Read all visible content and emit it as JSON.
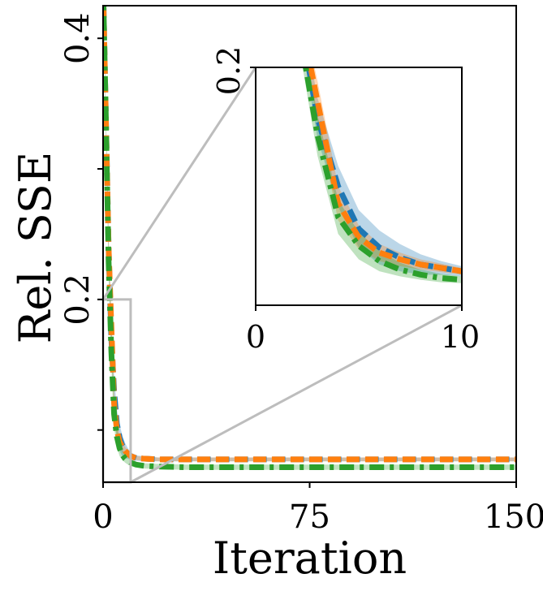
{
  "chart_data": {
    "type": "line",
    "xlabel": "Iteration",
    "ylabel": "Rel. SSE",
    "xlim": [
      0,
      150
    ],
    "ylim": [
      0.06,
      0.425
    ],
    "xticks": [
      "0",
      "75",
      "150"
    ],
    "yticks": [
      "0.2",
      "0.4"
    ],
    "grid": false,
    "legend": "none",
    "series": [
      {
        "color": "#1f77b4",
        "linestyle": "dashed",
        "band_opacity": 0.3,
        "x": [
          0,
          1,
          2,
          3,
          4,
          5,
          6,
          7,
          8,
          9,
          10,
          12,
          15,
          20,
          30,
          50,
          75,
          100,
          125,
          150
        ],
        "y": [
          0.44,
          0.34,
          0.24,
          0.17,
          0.13,
          0.105,
          0.094,
          0.088,
          0.084,
          0.082,
          0.08,
          0.0785,
          0.078,
          0.0775,
          0.0775,
          0.0775,
          0.0775,
          0.0775,
          0.0775,
          0.0775
        ],
        "band": [
          0.006,
          0.006,
          0.008,
          0.012,
          0.012,
          0.011,
          0.01,
          0.008,
          0.006,
          0.004,
          0.003,
          0.002,
          0.002,
          0.0015,
          0.0015,
          0.0015,
          0.0015,
          0.0015,
          0.0015,
          0.0015
        ]
      },
      {
        "color": "#ff7f0e",
        "linestyle": "dashed",
        "band_opacity": 0.3,
        "x": [
          0,
          1,
          2,
          3,
          4,
          5,
          6,
          7,
          8,
          9,
          10,
          12,
          15,
          20,
          30,
          50,
          75,
          100,
          125,
          150
        ],
        "y": [
          0.44,
          0.34,
          0.24,
          0.18,
          0.12,
          0.1,
          0.091,
          0.087,
          0.084,
          0.082,
          0.08,
          0.0785,
          0.078,
          0.0775,
          0.0775,
          0.0775,
          0.0775,
          0.0775,
          0.0775,
          0.0775
        ],
        "band": [
          0.006,
          0.006,
          0.008,
          0.012,
          0.01,
          0.007,
          0.005,
          0.004,
          0.003,
          0.0025,
          0.002,
          0.0015,
          0.0015,
          0.0015,
          0.0015,
          0.0015,
          0.0015,
          0.0015,
          0.0015,
          0.0015
        ]
      },
      {
        "color": "#2ca02c",
        "linestyle": "dashdot",
        "band_opacity": 0.3,
        "x": [
          0,
          1,
          2,
          3,
          4,
          5,
          6,
          7,
          8,
          9,
          10,
          12,
          15,
          20,
          30,
          50,
          75,
          100,
          125,
          150
        ],
        "y": [
          0.44,
          0.34,
          0.23,
          0.16,
          0.112,
          0.095,
          0.086,
          0.081,
          0.078,
          0.076,
          0.075,
          0.0735,
          0.0725,
          0.072,
          0.0715,
          0.0715,
          0.0715,
          0.0715,
          0.0715,
          0.0715
        ],
        "band": [
          0.006,
          0.006,
          0.01,
          0.012,
          0.01,
          0.008,
          0.006,
          0.004,
          0.003,
          0.0025,
          0.002,
          0.002,
          0.002,
          0.002,
          0.002,
          0.002,
          0.002,
          0.002,
          0.002,
          0.002
        ]
      }
    ],
    "inset": {
      "xlim": [
        0,
        10
      ],
      "ylim": [
        0.06,
        0.2
      ],
      "xticks": [
        "0",
        "10"
      ],
      "yticks": [
        "0.2"
      ],
      "zoom_region": {
        "x": [
          0,
          10
        ],
        "y": [
          0.06,
          0.2
        ]
      }
    }
  }
}
